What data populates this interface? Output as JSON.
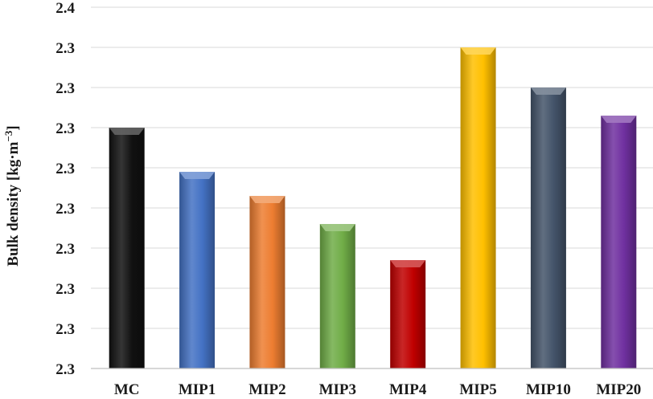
{
  "chart_data": {
    "type": "bar",
    "ylabel": "Bulk density  [kg·m⁻³]",
    "ylabel_parts": {
      "main": "Bulk density  [kg·m",
      "sup": "−3",
      "close": "]"
    },
    "ytick_labels": [
      "2.3",
      "2.3",
      "2.3",
      "2.3",
      "2.3",
      "2.3",
      "2.3",
      "2.3",
      "2.3",
      "2.4"
    ],
    "ylim": [
      0,
      9
    ],
    "grid": true,
    "categories": [
      "MC",
      "MIP1",
      "MIP2",
      "MIP3",
      "MIP4",
      "MIP5",
      "MIP10",
      "MIP20"
    ],
    "values": [
      6.0,
      4.9,
      4.3,
      3.6,
      2.7,
      8.0,
      7.0,
      6.3
    ],
    "colors": [
      "#111111",
      "#4472c4",
      "#ed7d31",
      "#70ad47",
      "#c00000",
      "#ffc000",
      "#44546a",
      "#7030a0"
    ]
  }
}
